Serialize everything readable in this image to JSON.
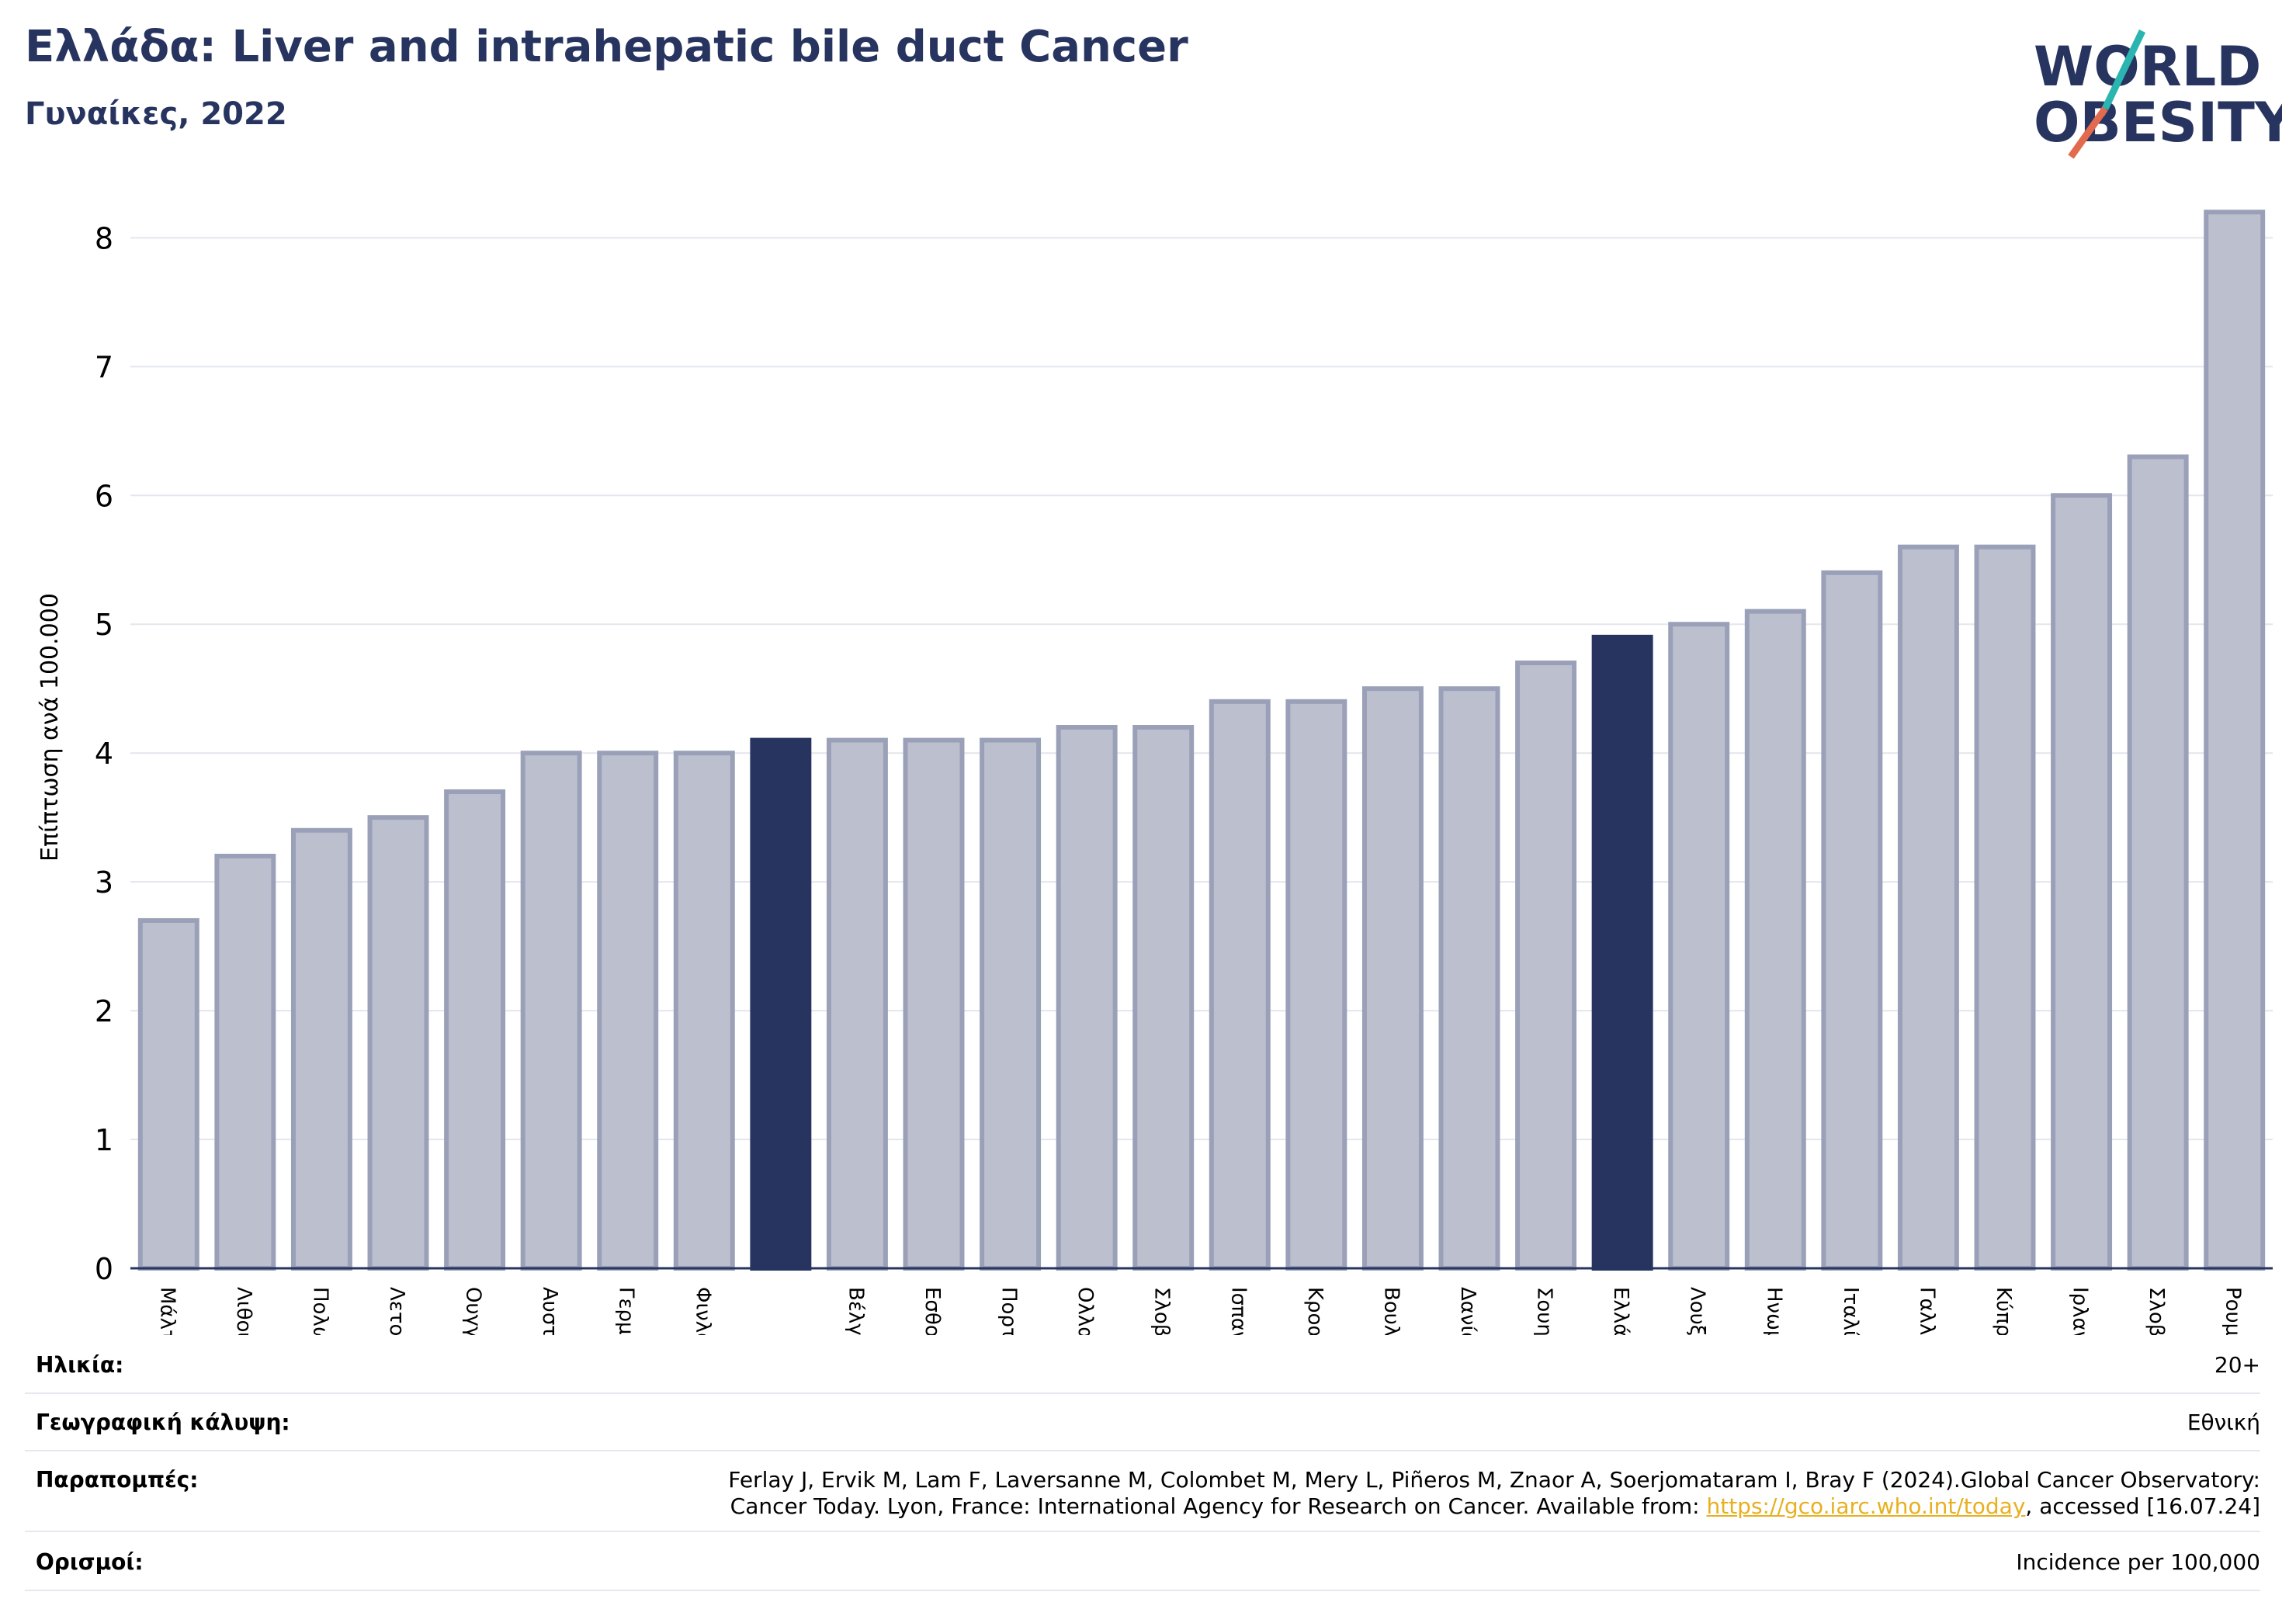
{
  "header": {
    "title": "Ελλάδα: Liver and intrahepatic bile duct Cancer",
    "subtitle": "Γυναίκες, 2022"
  },
  "logo": {
    "line1": "WORLD",
    "line2": "OBESITY",
    "accent_teal": "#2bb5b0",
    "accent_red": "#e26a4f",
    "text_color": "#27345f"
  },
  "chart_data": {
    "type": "bar",
    "ylabel": "Επίπτωση ανά 100.000",
    "ylim": [
      0,
      8.4
    ],
    "yticks": [
      0,
      1,
      2,
      3,
      4,
      5,
      6,
      7,
      8
    ],
    "grid": true,
    "categories": [
      "Μάλτα",
      "Λιθουανία",
      "Πολωνία",
      "Λετονία",
      "Ουγγαρία",
      "Αυστρία",
      "Γερμανία",
      "Φινλανδία",
      "",
      "Βέλγιο",
      "Εσθονία",
      "Πορτογαλία",
      "Ολλανδία",
      "Σλοβακία",
      "Ισπανία",
      "Κροατία",
      "Βουλγαρία",
      "Δανία",
      "Σουηδία",
      "Ελλάδα",
      "Λουξεμβούργο",
      "Ηνωμένο Βασίλειο",
      "Ιταλία",
      "Γαλλία",
      "Κύπρος",
      "Ιρλανδία",
      "Σλοβενία",
      "Ρουμανία"
    ],
    "values": [
      2.7,
      3.2,
      3.4,
      3.5,
      3.7,
      4.0,
      4.0,
      4.0,
      4.1,
      4.1,
      4.1,
      4.1,
      4.2,
      4.2,
      4.4,
      4.4,
      4.5,
      4.5,
      4.7,
      4.9,
      5.0,
      5.1,
      5.4,
      5.6,
      5.6,
      6.0,
      6.3,
      8.2
    ],
    "highlight": [
      8,
      19
    ],
    "colors": {
      "bar": "#bcc0ce",
      "bar_edge": "#9aa0b8",
      "highlight": "#27345f",
      "axis": "#27345f",
      "grid": "#e4e6ee"
    }
  },
  "meta": {
    "age_label": "Ηλικία:",
    "age_value": "20+",
    "coverage_label": "Γεωγραφική κάλυψη:",
    "coverage_value": "Εθνική",
    "refs_label": "Παραπομπές:",
    "refs_line1": "Ferlay J, Ervik M, Lam F, Laversanne M, Colombet M, Mery L, Piñeros M, Znaor A, Soerjomataram I, Bray F (2024).Global Cancer Observatory:",
    "refs_line2_pre": "Cancer Today. Lyon, France: International Agency for Research on Cancer. Available from: ",
    "refs_link": "https://gco.iarc.who.int/today",
    "refs_line2_post": ", accessed [16.07.24]",
    "defs_label": "Ορισμοί:",
    "defs_value": "Incidence per 100,000"
  }
}
